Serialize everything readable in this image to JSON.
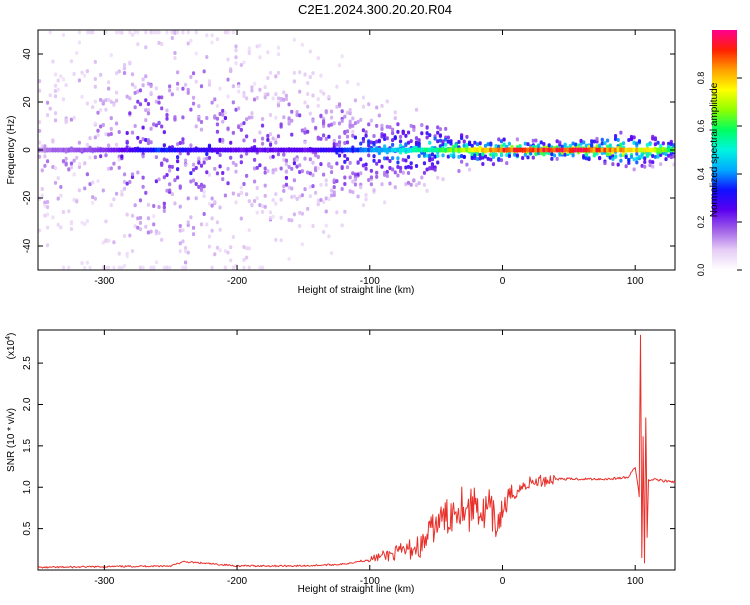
{
  "chart_data": [
    {
      "type": "heatmap",
      "title": "C2E1.2024.300.20.20.R04",
      "xlabel": "Height of straight line (km)",
      "ylabel": "Frequency (Hz)",
      "xlim": [
        -350,
        130
      ],
      "ylim": [
        -50,
        50
      ],
      "xticks": [
        -300,
        -200,
        -100,
        0,
        100
      ],
      "yticks": [
        -40,
        -20,
        0,
        20,
        40
      ],
      "colorbar": {
        "label": "Normalized spectral amplitude",
        "range": [
          0,
          1
        ],
        "ticks": [
          "0.0",
          "0.2",
          "0.4",
          "0.6",
          "0.8"
        ],
        "colors": [
          "#ffffff",
          "#e6cdf5",
          "#a060e8",
          "#5a00f0",
          "#1010ff",
          "#00aaff",
          "#00f5e0",
          "#00ff60",
          "#90ff00",
          "#ffff00",
          "#ffa000",
          "#ff2000",
          "#ff0090"
        ]
      },
      "ridge": [
        {
          "x": -350,
          "amp": 0.15,
          "spread": 50
        },
        {
          "x": -300,
          "amp": 0.2,
          "spread": 50
        },
        {
          "x": -260,
          "amp": 0.35,
          "spread": 45
        },
        {
          "x": -200,
          "amp": 0.25,
          "spread": 45
        },
        {
          "x": -150,
          "amp": 0.25,
          "spread": 35
        },
        {
          "x": -100,
          "amp": 0.4,
          "spread": 15
        },
        {
          "x": -60,
          "amp": 0.55,
          "spread": 10
        },
        {
          "x": -30,
          "amp": 0.7,
          "spread": 5
        },
        {
          "x": 0,
          "amp": 0.92,
          "spread": 3
        },
        {
          "x": 50,
          "amp": 0.95,
          "spread": 2
        },
        {
          "x": 100,
          "amp": 0.8,
          "spread": 6
        },
        {
          "x": 130,
          "amp": 0.6,
          "spread": 3
        }
      ]
    },
    {
      "type": "line",
      "title": "",
      "xlabel": "Height of straight line (km)",
      "ylabel": "SNR (10 * v/v)",
      "yscale_note": "(x10",
      "yscale_exp": "4",
      "xlim": [
        -350,
        130
      ],
      "ylim": [
        0,
        2.9
      ],
      "xticks": [
        -300,
        -200,
        -100,
        0,
        100
      ],
      "yticks": [
        "0.5",
        "1.0",
        "1.5",
        "2.0",
        "2.5"
      ],
      "series": [
        {
          "color": "#e8302a",
          "x": [
            -350,
            -300,
            -250,
            -240,
            -200,
            -150,
            -120,
            -100,
            -90,
            -80,
            -70,
            -60,
            -55,
            -50,
            -45,
            -40,
            -35,
            -30,
            -25,
            -20,
            -15,
            -10,
            -5,
            0,
            5,
            10,
            15,
            20,
            30,
            40,
            60,
            80,
            95,
            100,
            103,
            104,
            105,
            106,
            107,
            108,
            109,
            110,
            112,
            115,
            120,
            130
          ],
          "y": [
            0.03,
            0.04,
            0.05,
            0.1,
            0.05,
            0.05,
            0.07,
            0.13,
            0.17,
            0.2,
            0.25,
            0.3,
            0.45,
            0.55,
            0.62,
            0.65,
            0.75,
            0.82,
            0.7,
            0.85,
            0.65,
            0.75,
            0.5,
            0.72,
            0.85,
            0.95,
            1.0,
            1.05,
            1.08,
            1.1,
            1.1,
            1.1,
            1.12,
            1.25,
            0.9,
            2.85,
            0.15,
            1.6,
            0.1,
            1.85,
            0.4,
            1.1,
            1.08,
            1.1,
            1.08,
            1.06
          ]
        }
      ]
    }
  ]
}
